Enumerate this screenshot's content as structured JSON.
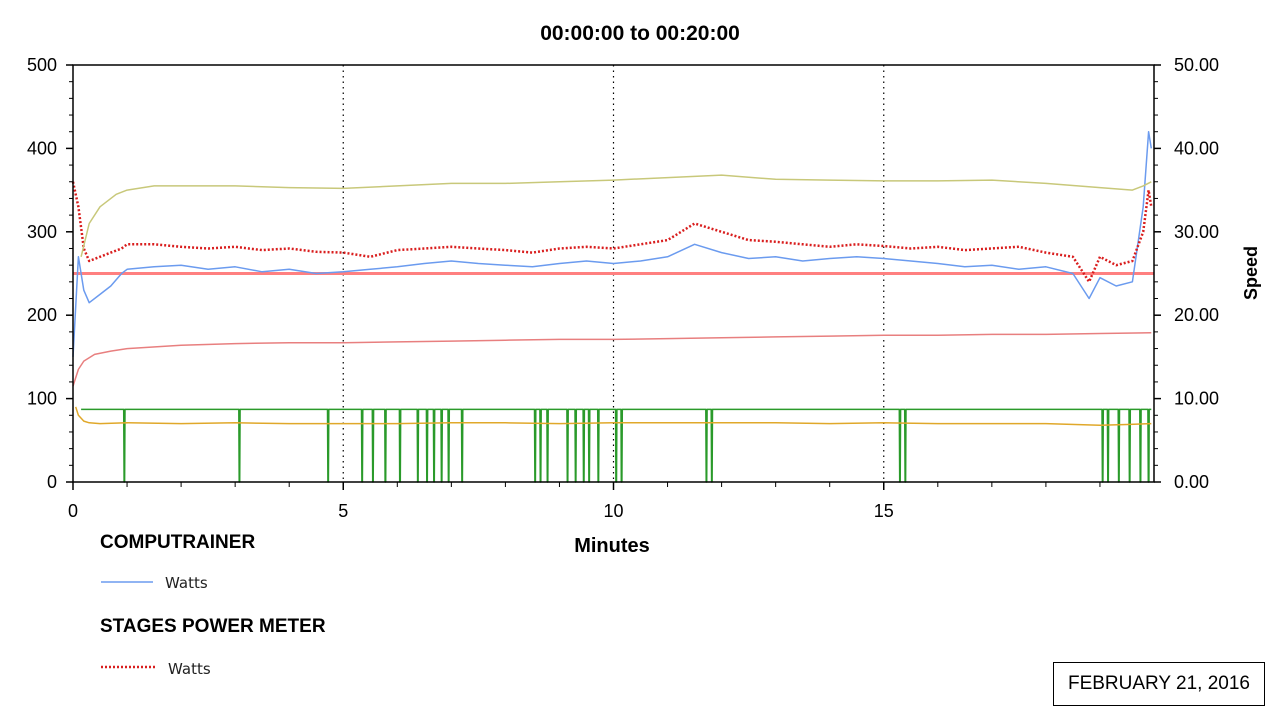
{
  "chart_data": {
    "type": "line",
    "title": "00:00:00 to 00:20:00",
    "xlabel": "Minutes",
    "ylabel_left": "",
    "ylabel_right": "Speed",
    "xlim": [
      0,
      20
    ],
    "ylim_left": [
      0,
      500
    ],
    "ylim_right": [
      0,
      50
    ],
    "x_ticks": [
      "0",
      "5",
      "10",
      "15"
    ],
    "y_left_ticks": [
      "0",
      "100",
      "200",
      "300",
      "400",
      "500"
    ],
    "y_right_ticks": [
      "0.00",
      "10.00",
      "20.00",
      "30.00",
      "40.00",
      "50.00"
    ],
    "grid": "vertical dotted at 5, 10, 15",
    "reference_line": {
      "axis": "left",
      "value": 250,
      "color": "#ff8080"
    },
    "series": [
      {
        "name": "Watts",
        "group": "COMPUTRAINER",
        "axis": "left",
        "color": "#6b9bef",
        "style": "solid",
        "x": [
          0,
          0.1,
          0.2,
          0.3,
          0.5,
          0.7,
          0.9,
          1,
          1.5,
          2,
          2.5,
          3,
          3.5,
          4,
          4.5,
          5,
          5.5,
          6,
          6.5,
          7,
          7.5,
          8,
          8.5,
          9,
          9.5,
          10,
          10.5,
          11,
          11.5,
          12,
          12.5,
          13,
          13.5,
          14,
          14.5,
          15,
          15.5,
          16,
          16.5,
          17,
          17.5,
          18,
          18.5,
          18.8,
          19,
          19.3,
          19.6,
          19.8,
          19.9,
          19.95
        ],
        "values": [
          150,
          270,
          230,
          215,
          225,
          235,
          250,
          255,
          258,
          260,
          255,
          258,
          252,
          255,
          250,
          252,
          255,
          258,
          262,
          265,
          262,
          260,
          258,
          262,
          265,
          262,
          265,
          270,
          285,
          275,
          268,
          270,
          265,
          268,
          270,
          268,
          265,
          262,
          258,
          260,
          255,
          258,
          250,
          220,
          245,
          235,
          240,
          330,
          420,
          400
        ]
      },
      {
        "name": "Watts",
        "group": "STAGES POWER METER",
        "axis": "left",
        "color": "#d91e1e",
        "style": "dotted",
        "x": [
          0,
          0.1,
          0.2,
          0.3,
          0.5,
          0.7,
          0.9,
          1,
          1.5,
          2,
          2.5,
          3,
          3.5,
          4,
          4.5,
          5,
          5.5,
          6,
          6.5,
          7,
          7.5,
          8,
          8.5,
          9,
          9.5,
          10,
          10.5,
          11,
          11.5,
          12,
          12.5,
          13,
          13.5,
          14,
          14.5,
          15,
          15.5,
          16,
          16.5,
          17,
          17.5,
          18,
          18.5,
          18.8,
          19,
          19.3,
          19.6,
          19.8,
          19.9,
          19.95
        ],
        "values": [
          360,
          330,
          280,
          265,
          270,
          275,
          280,
          285,
          285,
          282,
          280,
          282,
          278,
          280,
          276,
          275,
          270,
          278,
          280,
          282,
          280,
          278,
          275,
          280,
          282,
          280,
          285,
          290,
          310,
          300,
          290,
          288,
          285,
          282,
          285,
          283,
          280,
          282,
          278,
          280,
          282,
          275,
          270,
          240,
          270,
          260,
          265,
          300,
          350,
          330
        ]
      },
      {
        "name": "Speed",
        "axis": "right",
        "color": "#c8c87a",
        "style": "solid",
        "x": [
          0.15,
          0.3,
          0.5,
          0.8,
          1,
          1.5,
          2,
          3,
          4,
          5,
          6,
          7,
          8,
          9,
          10,
          11,
          12,
          13,
          14,
          15,
          16,
          17,
          18,
          19,
          19.6,
          19.8,
          19.95
        ],
        "values": [
          27,
          31,
          33,
          34.5,
          35,
          35.5,
          35.5,
          35.5,
          35.3,
          35.2,
          35.5,
          35.8,
          35.8,
          36,
          36.2,
          36.5,
          36.8,
          36.3,
          36.2,
          36.1,
          36.1,
          36.2,
          35.8,
          35.3,
          35,
          35.5,
          36
        ]
      },
      {
        "name": "",
        "axis": "right",
        "color": "#e87f7f",
        "style": "solid",
        "x": [
          0,
          0.1,
          0.2,
          0.4,
          0.7,
          1,
          2,
          3,
          4,
          5,
          6,
          7,
          8,
          9,
          10,
          11,
          12,
          13,
          14,
          15,
          16,
          17,
          18,
          19,
          19.95
        ],
        "values": [
          11.5,
          13.5,
          14.5,
          15.3,
          15.7,
          16,
          16.4,
          16.6,
          16.7,
          16.7,
          16.8,
          16.9,
          17,
          17.1,
          17.1,
          17.2,
          17.3,
          17.4,
          17.5,
          17.6,
          17.6,
          17.7,
          17.7,
          17.8,
          17.9
        ]
      },
      {
        "name": "",
        "axis": "right",
        "color": "#2a9a2a",
        "style": "solid",
        "baseline": 8.7,
        "dropouts": [
          0.95,
          3.08,
          4.72,
          5.35,
          5.55,
          5.78,
          6.05,
          6.38,
          6.55,
          6.68,
          6.82,
          6.95,
          7.2,
          8.55,
          8.65,
          8.78,
          9.15,
          9.3,
          9.45,
          9.55,
          9.72,
          10.05,
          10.15,
          11.72,
          11.82,
          15.3,
          15.4,
          19.05,
          19.15,
          19.35,
          19.55,
          19.75,
          19.9
        ]
      },
      {
        "name": "",
        "axis": "right",
        "color": "#e0a82a",
        "style": "solid",
        "x": [
          0.05,
          0.1,
          0.2,
          0.3,
          0.5,
          1,
          2,
          3,
          4,
          5,
          6,
          7,
          8,
          9,
          10,
          11,
          12,
          13,
          14,
          15,
          16,
          17,
          18,
          19,
          19.5,
          19.95
        ],
        "values": [
          9,
          8,
          7.3,
          7.1,
          7,
          7.1,
          7,
          7.1,
          7,
          7,
          7,
          7.1,
          7.1,
          7,
          7.1,
          7.1,
          7.1,
          7.1,
          7,
          7.1,
          7,
          7,
          7,
          6.8,
          6.9,
          7
        ]
      }
    ]
  },
  "legend": {
    "computrainer_title": "COMPUTRAINER",
    "computrainer_label": "Watts",
    "stages_title": "STAGES POWER METER",
    "stages_label": "Watts"
  },
  "date_label": "FEBRUARY 21, 2016"
}
